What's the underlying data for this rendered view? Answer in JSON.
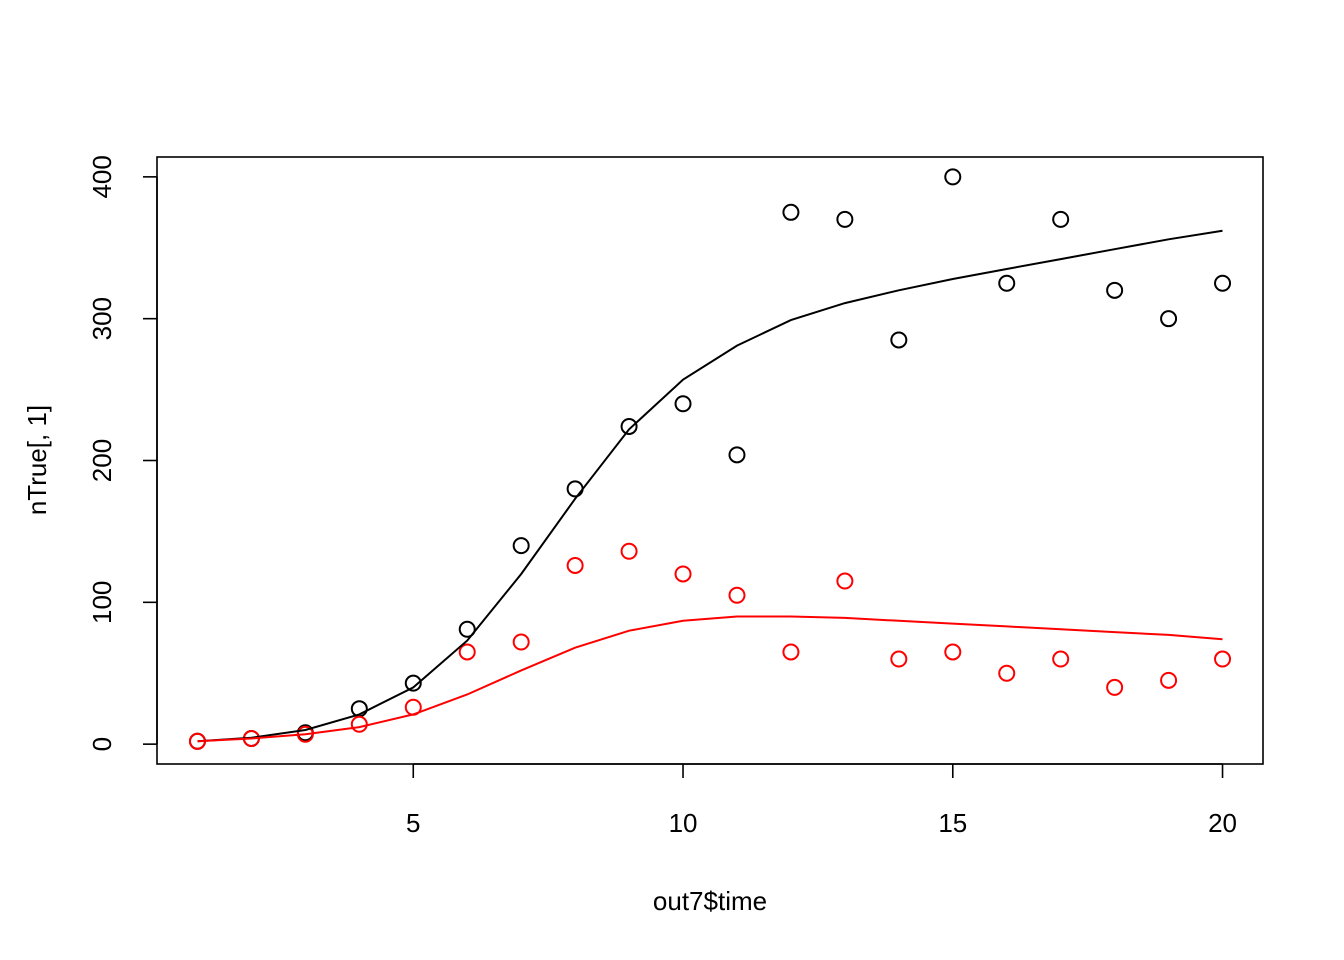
{
  "chart_data": {
    "type": "scatter",
    "title": "",
    "xlabel": "out7$time",
    "ylabel": "nTrue[, 1]",
    "xlim": [
      0.25,
      20.75
    ],
    "ylim": [
      -14,
      414
    ],
    "x_ticks": [
      5,
      10,
      15,
      20
    ],
    "y_ticks": [
      0,
      100,
      200,
      300,
      400
    ],
    "grid": false,
    "legend": "none",
    "series": [
      {
        "color": "#000000",
        "mode": "points",
        "x": [
          1,
          2,
          3,
          4,
          5,
          6,
          7,
          8,
          9,
          10,
          11,
          12,
          13,
          14,
          15,
          16,
          17,
          18,
          19,
          20
        ],
        "y": [
          2,
          4,
          8,
          25,
          43,
          81,
          140,
          180,
          224,
          240,
          204,
          375,
          370,
          285,
          400,
          325,
          370,
          320,
          300,
          325
        ]
      },
      {
        "color": "#ff0000",
        "mode": "points",
        "x": [
          1,
          2,
          3,
          4,
          5,
          6,
          7,
          8,
          9,
          10,
          11,
          12,
          13,
          14,
          15,
          16,
          17,
          18,
          19,
          20
        ],
        "y": [
          2,
          4,
          7,
          14,
          26,
          65,
          72,
          126,
          136,
          120,
          105,
          65,
          115,
          60,
          65,
          50,
          60,
          40,
          45,
          60
        ]
      },
      {
        "color": "#000000",
        "mode": "line",
        "x": [
          1,
          2,
          3,
          4,
          5,
          6,
          7,
          8,
          9,
          10,
          11,
          12,
          13,
          14,
          15,
          16,
          17,
          18,
          19,
          20
        ],
        "y": [
          2,
          4.5,
          10,
          21,
          40,
          73,
          120,
          173,
          222,
          257,
          281,
          299,
          311,
          320,
          328,
          335,
          342,
          349,
          356,
          362
        ]
      },
      {
        "color": "#ff0000",
        "mode": "line",
        "x": [
          1,
          2,
          3,
          4,
          5,
          6,
          7,
          8,
          9,
          10,
          11,
          12,
          13,
          14,
          15,
          16,
          17,
          18,
          19,
          20
        ],
        "y": [
          2,
          4,
          7,
          12,
          21,
          35,
          52,
          68,
          80,
          87,
          90,
          90,
          89,
          87,
          85,
          83,
          81,
          79,
          77,
          74
        ]
      }
    ]
  }
}
